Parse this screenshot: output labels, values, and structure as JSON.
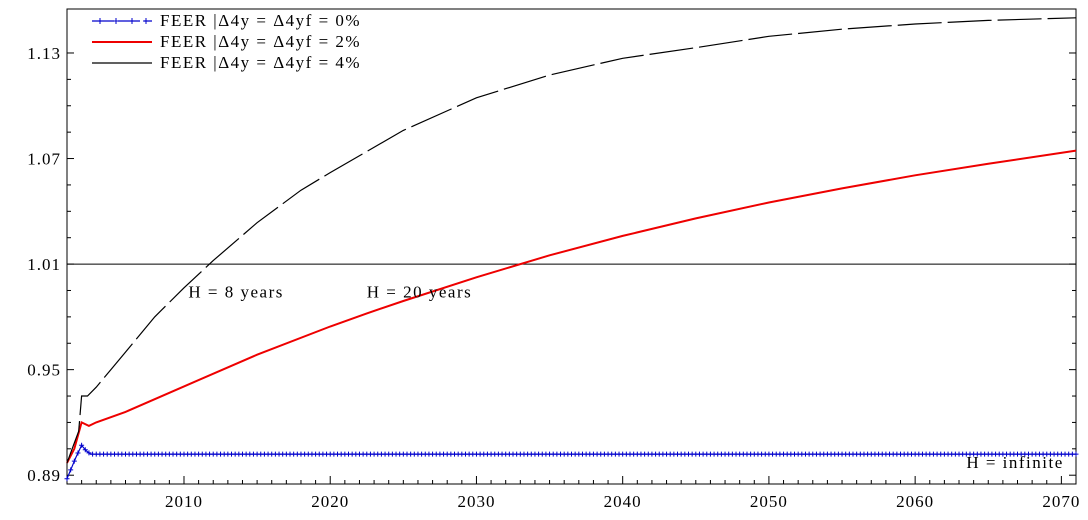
{
  "chart_data": {
    "type": "line",
    "title": "",
    "xlabel": "",
    "ylabel": "",
    "xlim": [
      2002,
      2071
    ],
    "ylim": [
      0.885,
      1.155
    ],
    "x_ticks": [
      2010,
      2020,
      2030,
      2040,
      2050,
      2060,
      2070
    ],
    "y_ticks": [
      0.89,
      0.95,
      1.01,
      1.07,
      1.13
    ],
    "y_tick_labels": [
      "0.89",
      "0.95",
      "1.01",
      "1.07",
      "1.13"
    ],
    "grid": false,
    "legend_position": "top-left",
    "reference_line": {
      "y": 1.01
    },
    "series": [
      {
        "name": "FEER |Δ4y = Δ4yf = 0%",
        "color": "#0000cc",
        "style": "solid-markers",
        "points": [
          [
            2002,
            0.888
          ],
          [
            2002.3,
            0.894
          ],
          [
            2002.6,
            0.9
          ],
          [
            2003,
            0.907
          ],
          [
            2003.3,
            0.904
          ],
          [
            2003.6,
            0.902
          ],
          [
            2004,
            0.902
          ],
          [
            2006,
            0.902
          ],
          [
            2010,
            0.902
          ],
          [
            2020,
            0.902
          ],
          [
            2030,
            0.902
          ],
          [
            2040,
            0.902
          ],
          [
            2050,
            0.902
          ],
          [
            2060,
            0.902
          ],
          [
            2071,
            0.902
          ]
        ]
      },
      {
        "name": "FEER |Δ4y = Δ4yf = 2%",
        "color": "#ee0000",
        "style": "solid",
        "points": [
          [
            2002,
            0.897
          ],
          [
            2002.5,
            0.905
          ],
          [
            2003,
            0.92
          ],
          [
            2003.5,
            0.918
          ],
          [
            2004,
            0.92
          ],
          [
            2006,
            0.926
          ],
          [
            2010,
            0.9405
          ],
          [
            2015,
            0.9585
          ],
          [
            2020,
            0.9745
          ],
          [
            2022.5,
            0.982
          ],
          [
            2025,
            0.989
          ],
          [
            2030,
            1.0025
          ],
          [
            2035,
            1.015
          ],
          [
            2040,
            1.026
          ],
          [
            2045,
            1.036
          ],
          [
            2050,
            1.045
          ],
          [
            2055,
            1.053
          ],
          [
            2060,
            1.0605
          ],
          [
            2065,
            1.067
          ],
          [
            2071,
            1.0745
          ]
        ]
      },
      {
        "name": "FEER |Δ4y = Δ4yf = 4%",
        "color": "#000000",
        "style": "long-dash",
        "points": [
          [
            2002,
            0.897
          ],
          [
            2002.4,
            0.906
          ],
          [
            2002.8,
            0.915
          ],
          [
            2003,
            0.935
          ],
          [
            2003.4,
            0.935
          ],
          [
            2004,
            0.94
          ],
          [
            2005,
            0.95
          ],
          [
            2006,
            0.96
          ],
          [
            2008,
            0.98
          ],
          [
            2010,
            0.9965
          ],
          [
            2012,
            1.012
          ],
          [
            2015,
            1.0335
          ],
          [
            2018,
            1.052
          ],
          [
            2020,
            1.062
          ],
          [
            2025,
            1.086
          ],
          [
            2030,
            1.1045
          ],
          [
            2035,
            1.1175
          ],
          [
            2040,
            1.127
          ],
          [
            2045,
            1.133
          ],
          [
            2050,
            1.1395
          ],
          [
            2055,
            1.1435
          ],
          [
            2060,
            1.1465
          ],
          [
            2065,
            1.1485
          ],
          [
            2071,
            1.15
          ]
        ]
      }
    ],
    "annotations": [
      {
        "text": "H = 8 years",
        "x": 2010.3,
        "y": 1.0035
      },
      {
        "text": "H = 20 years",
        "x": 2022.5,
        "y": 1.0035
      },
      {
        "text": "H = infinite",
        "x": 2063.5,
        "y": 0.9065
      }
    ]
  }
}
